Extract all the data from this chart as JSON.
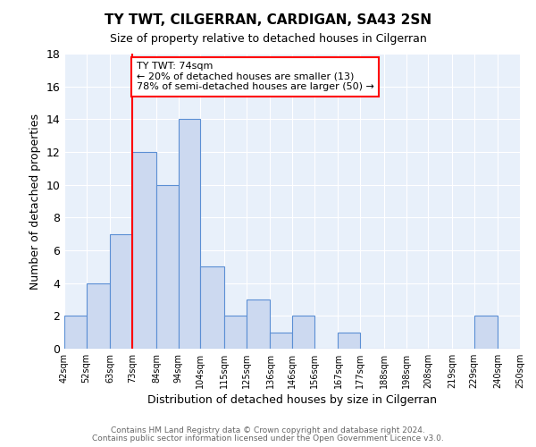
{
  "title": "TY TWT, CILGERRAN, CARDIGAN, SA43 2SN",
  "subtitle": "Size of property relative to detached houses in Cilgerran",
  "xlabel": "Distribution of detached houses by size in Cilgerran",
  "ylabel": "Number of detached properties",
  "bin_edges": [
    42,
    52,
    63,
    73,
    84,
    94,
    104,
    115,
    125,
    136,
    146,
    156,
    167,
    177,
    188,
    198,
    208,
    219,
    229,
    240,
    250
  ],
  "counts": [
    2,
    4,
    7,
    12,
    10,
    14,
    5,
    2,
    3,
    1,
    2,
    0,
    1,
    0,
    0,
    0,
    0,
    0,
    2,
    0
  ],
  "tick_labels": [
    "42sqm",
    "52sqm",
    "63sqm",
    "73sqm",
    "84sqm",
    "94sqm",
    "104sqm",
    "115sqm",
    "125sqm",
    "136sqm",
    "146sqm",
    "156sqm",
    "167sqm",
    "177sqm",
    "188sqm",
    "198sqm",
    "208sqm",
    "219sqm",
    "229sqm",
    "240sqm",
    "250sqm"
  ],
  "bar_facecolor": "#ccd9f0",
  "bar_edgecolor": "#5b8fd4",
  "background_color": "#e8f0fa",
  "grid_color": "#ffffff",
  "vline_x": 73,
  "vline_color": "red",
  "annotation_line1": "TY TWT: 74sqm",
  "annotation_line2": "← 20% of detached houses are smaller (13)",
  "annotation_line3": "78% of semi-detached houses are larger (50) →",
  "annotation_box_edgecolor": "red",
  "ylim": [
    0,
    18
  ],
  "yticks": [
    0,
    2,
    4,
    6,
    8,
    10,
    12,
    14,
    16,
    18
  ],
  "footer_line1": "Contains HM Land Registry data © Crown copyright and database right 2024.",
  "footer_line2": "Contains public sector information licensed under the Open Government Licence v3.0.",
  "fig_width": 6.0,
  "fig_height": 5.0,
  "dpi": 100
}
